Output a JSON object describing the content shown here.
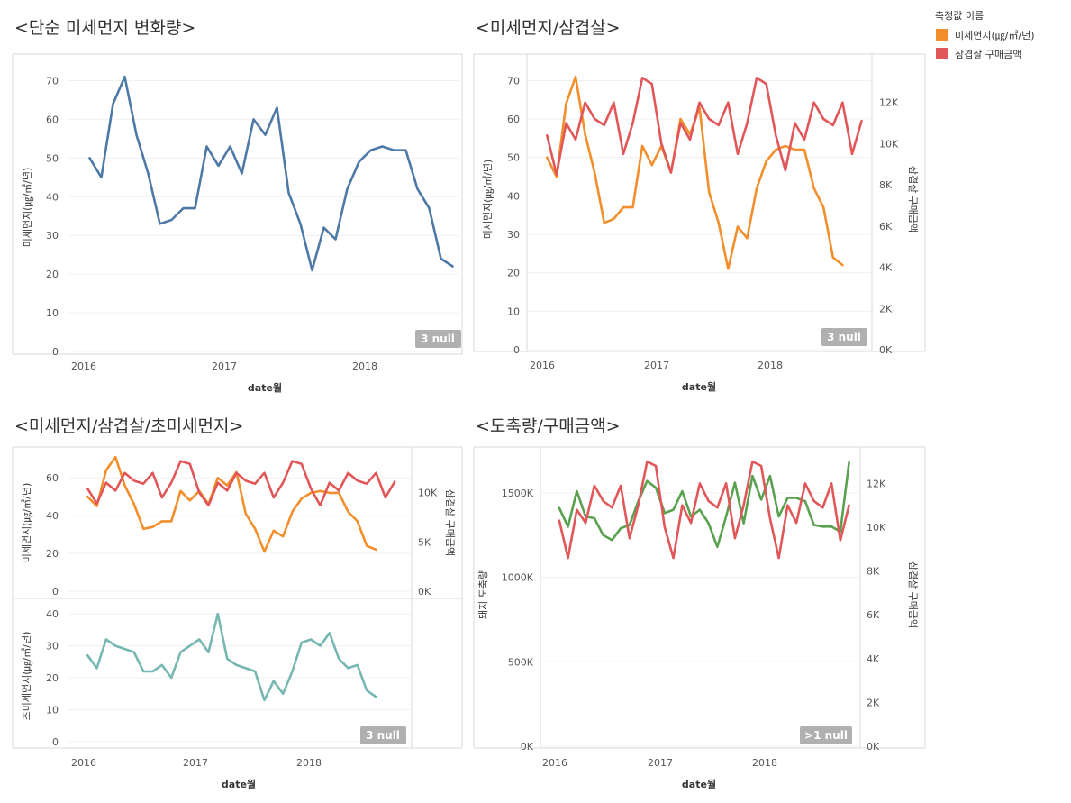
{
  "colors": {
    "orange": "#f28e2b",
    "red": "#e15759",
    "blue": "#4e79a7",
    "teal": "#76b7b2",
    "green": "#59a14f"
  },
  "legend": {
    "title": "측정값 이름",
    "items": [
      {
        "label": "미세먼지(㎍/㎥/년)",
        "color": "#f28e2b"
      },
      {
        "label": "삼겹살 구매금액",
        "color": "#e15759"
      }
    ]
  },
  "chart_data": [
    {
      "type": "line",
      "title": "<단순 미세먼지 변화량>",
      "xlabel": "date월",
      "ylabel": "미세먼지(㎍/㎥/년)",
      "x_ticks": [
        "2016",
        "2017",
        "2018"
      ],
      "y_ticks": [
        "0",
        "10",
        "20",
        "30",
        "40",
        "50",
        "60",
        "70"
      ],
      "ylim": [
        0,
        75
      ],
      "null_badge": "3 null",
      "series": [
        {
          "name": "미세먼지(㎍/㎥/년)",
          "color": "#4e79a7",
          "values": [
            50,
            45,
            64,
            71,
            56,
            46,
            33,
            34,
            37,
            37,
            53,
            48,
            53,
            46,
            60,
            56,
            63,
            41,
            33,
            21,
            32,
            29,
            42,
            49,
            52,
            53,
            52,
            52,
            42,
            37,
            24,
            22
          ]
        }
      ]
    },
    {
      "type": "line",
      "title": "<미세먼지/삼겹살>",
      "xlabel": "date월",
      "ylabel": "미세먼지(㎍/㎥/년)",
      "y2label": "삼겹살 구매금액",
      "x_ticks": [
        "2016",
        "2017",
        "2018"
      ],
      "y_ticks": [
        "0",
        "10",
        "20",
        "30",
        "40",
        "50",
        "60",
        "70"
      ],
      "y2_ticks": [
        "0K",
        "2K",
        "4K",
        "6K",
        "8K",
        "10K",
        "12K"
      ],
      "ylim": [
        0,
        75
      ],
      "y2lim": [
        0,
        14000
      ],
      "null_badge": "3 null",
      "series": [
        {
          "name": "미세먼지(㎍/㎥/년)",
          "color": "#f28e2b",
          "axis": "left",
          "values": [
            50,
            45,
            64,
            71,
            56,
            46,
            33,
            34,
            37,
            37,
            53,
            48,
            53,
            46,
            60,
            56,
            63,
            41,
            33,
            21,
            32,
            29,
            42,
            49,
            52,
            53,
            52,
            52,
            42,
            37,
            24,
            22
          ]
        },
        {
          "name": "삼겹살 구매금액",
          "color": "#e15759",
          "axis": "right",
          "values": [
            10400,
            8500,
            11000,
            10200,
            12000,
            11200,
            10900,
            12000,
            9500,
            11000,
            13200,
            12900,
            10000,
            8600,
            11000,
            10200,
            12000,
            11200,
            10900,
            12000,
            9500,
            11000,
            13200,
            12900,
            10400,
            8700,
            11000,
            10200,
            12000,
            11200,
            10900,
            12000,
            9500,
            11100
          ]
        }
      ]
    },
    {
      "type": "line",
      "title": "<미세먼지/삼겹살/초미세먼지>",
      "xlabel": "date월",
      "panels": [
        {
          "ylabel": "미세먼지(㎍/㎥/년)",
          "y2label": "삼겹살 구매금액",
          "y_ticks": [
            "0",
            "20",
            "40",
            "60"
          ],
          "y2_ticks": [
            "0K",
            "5K",
            "10K"
          ],
          "ylim": [
            0,
            72
          ],
          "y2lim": [
            0,
            13800
          ],
          "series": [
            {
              "name": "미세먼지(㎍/㎥/년)",
              "color": "#f28e2b",
              "axis": "left",
              "values": [
                50,
                45,
                64,
                71,
                56,
                46,
                33,
                34,
                37,
                37,
                53,
                48,
                53,
                46,
                60,
                56,
                63,
                41,
                33,
                21,
                32,
                29,
                42,
                49,
                52,
                53,
                52,
                52,
                42,
                37,
                24,
                22
              ]
            },
            {
              "name": "삼겹살 구매금액",
              "color": "#e15759",
              "axis": "right",
              "values": [
                10400,
                8900,
                11000,
                10200,
                12000,
                11200,
                10900,
                12000,
                9500,
                11000,
                13200,
                12900,
                10000,
                8700,
                11000,
                10200,
                12000,
                11200,
                10900,
                12000,
                9500,
                11000,
                13200,
                12900,
                10400,
                8700,
                11000,
                10200,
                12000,
                11200,
                10900,
                12000,
                9500,
                11100
              ]
            }
          ]
        },
        {
          "ylabel": "초미세먼지(㎍/㎥/년)",
          "y_ticks": [
            "0",
            "10",
            "20",
            "30",
            "40"
          ],
          "ylim": [
            0,
            42
          ],
          "series": [
            {
              "name": "초미세먼지(㎍/㎥/년)",
              "color": "#76b7b2",
              "axis": "left",
              "values": [
                27,
                23,
                32,
                30,
                29,
                28,
                22,
                22,
                24,
                20,
                28,
                30,
                32,
                28,
                40,
                26,
                24,
                23,
                22,
                13,
                19,
                15,
                22,
                31,
                32,
                30,
                34,
                26,
                23,
                24,
                16,
                14
              ]
            }
          ]
        }
      ],
      "x_ticks": [
        "2016",
        "2017",
        "2018"
      ],
      "null_badge": "3 null"
    },
    {
      "type": "line",
      "title": "<도축량/구매금액>",
      "xlabel": "date월",
      "ylabel": "돼지 도축량",
      "y2label": "삼겹살 구매금액",
      "x_ticks": [
        "2016",
        "2017",
        "2018"
      ],
      "y_ticks": [
        "0K",
        "500K",
        "1000K",
        "1500K"
      ],
      "y2_ticks": [
        "0K",
        "2K",
        "4K",
        "6K",
        "8K",
        "10K",
        "12K"
      ],
      "ylim": [
        0,
        1750000
      ],
      "y2lim": [
        0,
        13500
      ],
      "null_badge": ">1 null",
      "series": [
        {
          "name": "돼지 도축량",
          "color": "#59a14f",
          "axis": "left",
          "values": [
            1410000,
            1300000,
            1510000,
            1360000,
            1350000,
            1250000,
            1220000,
            1290000,
            1310000,
            1450000,
            1570000,
            1530000,
            1380000,
            1400000,
            1510000,
            1360000,
            1400000,
            1320000,
            1180000,
            1360000,
            1560000,
            1320000,
            1600000,
            1460000,
            1600000,
            1360000,
            1470000,
            1470000,
            1450000,
            1310000,
            1300000,
            1300000,
            1270000,
            1680000
          ]
        },
        {
          "name": "삼겹살 구매금액",
          "color": "#e15759",
          "axis": "right",
          "values": [
            10300,
            8600,
            10800,
            10200,
            11900,
            11200,
            10900,
            11900,
            9500,
            11000,
            13000,
            12800,
            10000,
            8600,
            11000,
            10200,
            12000,
            11200,
            10900,
            12000,
            9500,
            11000,
            13000,
            12800,
            10400,
            8600,
            11000,
            10200,
            12000,
            11200,
            10900,
            12000,
            9400,
            11000
          ]
        }
      ]
    }
  ]
}
